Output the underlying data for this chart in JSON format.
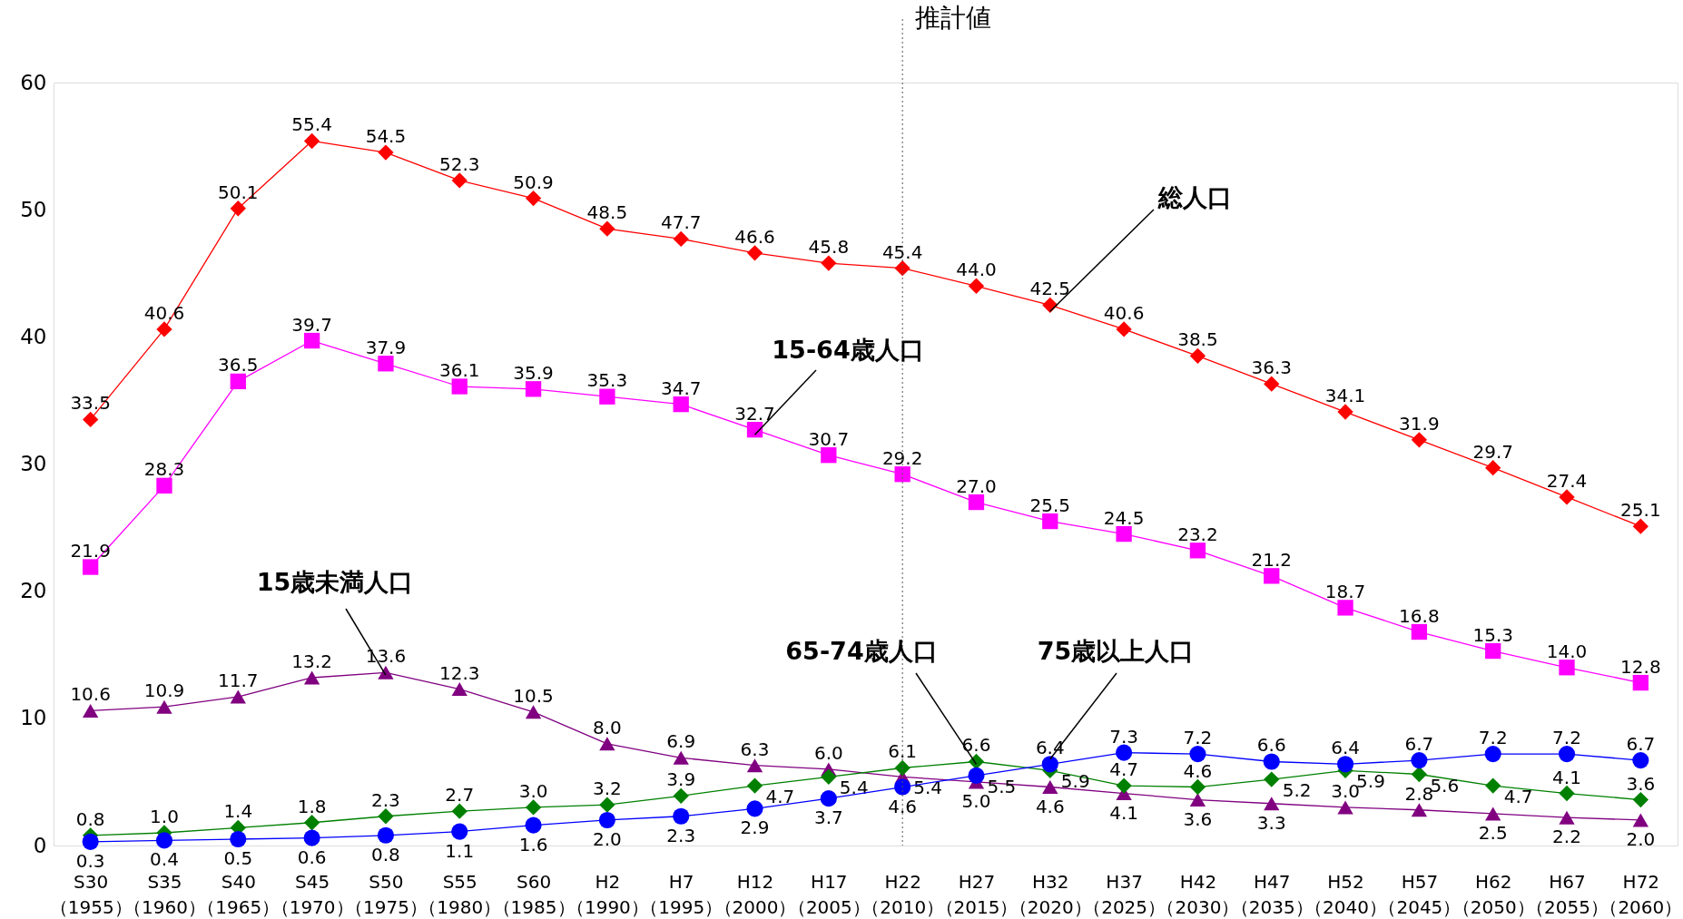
{
  "chart_data": {
    "type": "line",
    "categories": [
      "S30\n（1955）",
      "S35\n（1960）",
      "S40\n（1965）",
      "S45\n（1970）",
      "S50\n（1975）",
      "S55\n（1980）",
      "S60\n（1985）",
      "H2\n（1990）",
      "H7\n（1995）",
      "H12\n（2000）",
      "H17\n（2005）",
      "H22\n（2010）",
      "H27\n（2015）",
      "H32\n（2020）",
      "H37\n（2025）",
      "H42\n（2030）",
      "H47\n（2035）",
      "H52\n（2040）",
      "H57\n（2045）",
      "H62\n（2050）",
      "H67\n（2055）",
      "H72\n（2060）"
    ],
    "series": [
      {
        "color": "#ff0000",
        "marker": "diamond",
        "line_style": "solid",
        "values": [
          33.5,
          40.6,
          50.1,
          55.4,
          54.5,
          52.3,
          50.9,
          48.5,
          47.7,
          46.6,
          45.8,
          45.4,
          44.0,
          42.5,
          40.6,
          38.5,
          36.3,
          34.1,
          31.9,
          29.7,
          27.4,
          25.1
        ],
        "value_labels": [
          "33.5",
          "40.6",
          "50.1",
          "55.4",
          "54.5",
          "52.3",
          "50.9",
          "48.5",
          "47.7",
          "46.6",
          "45.8",
          "45.4",
          "44.0",
          "42.5",
          "40.6",
          "38.5",
          "36.3",
          "34.1",
          "31.9",
          "29.7",
          "27.4",
          "25.1"
        ]
      },
      {
        "color": "#ff00ff",
        "marker": "square",
        "line_style": "solid",
        "values": [
          21.9,
          28.3,
          36.5,
          39.7,
          37.9,
          36.1,
          35.9,
          35.3,
          34.7,
          32.7,
          30.7,
          29.2,
          27.0,
          25.5,
          24.5,
          23.2,
          21.2,
          18.7,
          16.8,
          15.3,
          14.0,
          12.8
        ],
        "value_labels": [
          "21.9",
          "28.3",
          "36.5",
          "39.7",
          "37.9",
          "36.1",
          "35.9",
          "35.3",
          "34.7",
          "32.7",
          "30.7",
          "29.2",
          "27.0",
          "25.5",
          "24.5",
          "23.2",
          "21.2",
          "18.7",
          "16.8",
          "15.3",
          "14.0",
          "12.8"
        ]
      },
      {
        "color": "#800080",
        "marker": "triangle",
        "line_style": "solid",
        "values": [
          10.6,
          10.9,
          11.7,
          13.2,
          13.6,
          12.3,
          10.5,
          8.0,
          6.9,
          6.3,
          6.0,
          5.4,
          5.0,
          4.6,
          4.1,
          3.6,
          3.3,
          3.0,
          2.8,
          2.5,
          2.2,
          2.0
        ],
        "value_labels": [
          "10.6",
          "10.9",
          "11.7",
          "13.2",
          "13.6",
          "12.3",
          "10.5",
          "8.0",
          "6.9",
          "6.3",
          "6.0",
          "5.4",
          "5.0",
          "4.6",
          "4.1",
          "3.6",
          "3.3",
          "3.0",
          "2.8",
          "2.5",
          "2.2",
          "2.0"
        ]
      },
      {
        "color": "#008000",
        "marker": "diamond",
        "line_style": "solid",
        "values": [
          0.8,
          1.0,
          1.4,
          1.8,
          2.3,
          2.7,
          3.0,
          3.2,
          3.9,
          4.7,
          5.4,
          6.1,
          6.6,
          5.9,
          4.7,
          4.6,
          5.2,
          5.9,
          5.6,
          4.7,
          4.1,
          3.6
        ],
        "value_labels": [
          "0.8",
          "1.0",
          "1.4",
          "1.8",
          "2.3",
          "2.7",
          "3.0",
          "3.2",
          "3.9",
          "4.7",
          "5.4",
          "6.1",
          "6.6",
          "5.9",
          "4.7",
          "4.6",
          "5.2",
          "5.9",
          "5.6",
          "4.7",
          "4.1",
          "3.6"
        ]
      },
      {
        "color": "#0000ff",
        "marker": "circle",
        "line_style": "solid",
        "values": [
          0.3,
          0.4,
          0.5,
          0.6,
          0.8,
          1.1,
          1.6,
          2.0,
          2.3,
          2.9,
          3.7,
          4.6,
          5.5,
          6.4,
          7.3,
          7.2,
          6.6,
          6.4,
          6.7,
          7.2,
          7.2,
          6.7
        ],
        "value_labels": [
          "0.3",
          "0.4",
          "0.5",
          "0.6",
          "0.8",
          "1.1",
          "1.6",
          "2.0",
          "2.3",
          "2.9",
          "3.7",
          "4.6",
          "5.5",
          "6.4",
          "7.3",
          "7.2",
          "6.6",
          "6.4",
          "6.7",
          "7.2",
          "7.2",
          "6.7"
        ]
      }
    ],
    "ylim": [
      0,
      60
    ],
    "yticks": [
      0,
      10,
      20,
      30,
      40,
      50,
      60
    ],
    "grid": false,
    "legend": false,
    "ref_lines": [
      {
        "axis": "x",
        "value": "H22\n（2010）",
        "label": "推計値",
        "line_style": "dotted"
      }
    ],
    "annotations": [
      {
        "text": "総人口",
        "x": "H32\n（2020）",
        "y": 42.0
      },
      {
        "text": "15-64歳人口",
        "x": "H12\n（2000）",
        "y": 32.3
      },
      {
        "text": "15歳未満人口",
        "x": "S50\n（1975）",
        "y": 13.4
      },
      {
        "text": "65-74歳人口",
        "x": "H27\n（2015）",
        "y": 6.4
      },
      {
        "text": "75歳以上人口",
        "x": "H32\n（2020）",
        "y": 6.8
      }
    ]
  }
}
